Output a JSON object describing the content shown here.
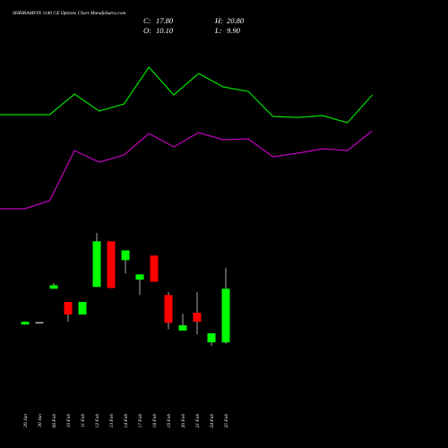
{
  "header": {
    "title": "SHRIRAMFIN 1140 CE Options Chart MunafaSutra.com",
    "ohlc": [
      {
        "label": "C:",
        "value": "17.80"
      },
      {
        "label": "H:",
        "value": "20.80"
      },
      {
        "label": "O:",
        "value": "10.10"
      },
      {
        "label": "L:",
        "value": "9.90"
      }
    ]
  },
  "chart_data": [
    {
      "type": "line",
      "series": [
        {
          "color": "#00e000",
          "values": [
            172,
            172,
            172,
            195,
            176,
            184,
            225,
            194,
            218,
            203,
            198,
            170,
            169,
            171,
            163,
            194
          ]
        },
        {
          "color": "#c000c0",
          "values": [
            67,
            67,
            76,
            132,
            119,
            127,
            151,
            136,
            152,
            144,
            145,
            125,
            129,
            134,
            132,
            154
          ]
        }
      ]
    },
    {
      "type": "candlestick",
      "categories": [
        "29 Jan",
        "30 Jan",
        "06 Feb",
        "10 Feb",
        "11 Feb",
        "12 Feb",
        "13 Feb",
        "14 Feb",
        "17 Feb",
        "18 Feb",
        "19 Feb",
        "20 Feb",
        "21 Feb",
        "24 Feb",
        "25 Feb"
      ],
      "open": [
        12.67,
        13.0,
        17.8,
        15.9,
        14.1,
        18.05,
        24.6,
        21.9,
        19.1,
        22.55,
        16.9,
        11.8,
        14.35,
        10.1,
        10.1
      ],
      "high": [
        13.1,
        13.0,
        18.6,
        15.9,
        15.9,
        25.8,
        24.6,
        23.3,
        19.85,
        22.55,
        17.3,
        14.2,
        17.3,
        11.4,
        20.8
      ],
      "low": [
        12.6,
        13.0,
        17.8,
        13.05,
        14.1,
        18.05,
        17.9,
        20.0,
        16.9,
        18.8,
        12.0,
        11.8,
        11.25,
        9.6,
        9.9
      ],
      "close": [
        13.05,
        13.0,
        18.3,
        14.1,
        15.9,
        24.6,
        17.9,
        23.3,
        19.85,
        18.8,
        12.9,
        12.55,
        13.05,
        11.4,
        17.8
      ],
      "up_color": "#00ff00",
      "down_color": "#ff0000",
      "flat_color": "#dddddd"
    }
  ]
}
